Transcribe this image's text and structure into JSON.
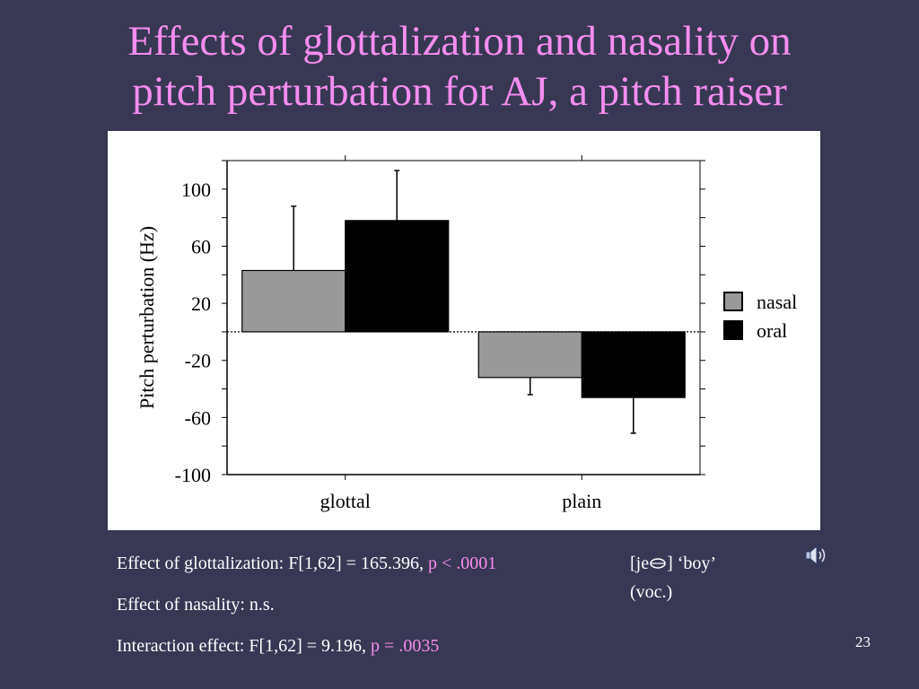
{
  "slide": {
    "title_line1": "Effects of glottalization and nasality on",
    "title_line2": "pitch perturbation for AJ, a pitch raiser",
    "page_number": "23"
  },
  "stats": {
    "glottalization_label": "Effect of glottalization:  F[1,62] = 165.396, ",
    "glottalization_p": "p < .0001",
    "nasality_label": "Effect of nasality: n.s.",
    "interaction_label": "Interaction effect: F[1,62] = 9.196, ",
    "interaction_p": "p = .0035"
  },
  "audio_note": {
    "line1_prefix": "[je",
    "line1_suffix": "] ‘boy’",
    "line2": "(voc.)",
    "icon": "speaker-icon"
  },
  "colors": {
    "background": "#383854",
    "title": "#f58df0",
    "nasal": "#999999",
    "oral": "#000000"
  },
  "chart_data": {
    "type": "bar",
    "categories": [
      "glottal",
      "plain"
    ],
    "series": [
      {
        "name": "nasal",
        "values": [
          43,
          -32
        ],
        "error": [
          45,
          12
        ],
        "color": "#999999"
      },
      {
        "name": "oral",
        "values": [
          78,
          -46
        ],
        "error": [
          35,
          25
        ],
        "color": "#000000"
      }
    ],
    "xlabel": "",
    "ylabel": "Pitch perturbation (Hz)",
    "ylim": [
      -100,
      120
    ],
    "yticks": [
      100,
      60,
      20,
      -20,
      -60,
      -100
    ],
    "ytick_labels": [
      "100",
      "60",
      "20",
      "-20",
      "-60",
      "-100"
    ],
    "reference_line": 0,
    "legend_position": "right"
  }
}
